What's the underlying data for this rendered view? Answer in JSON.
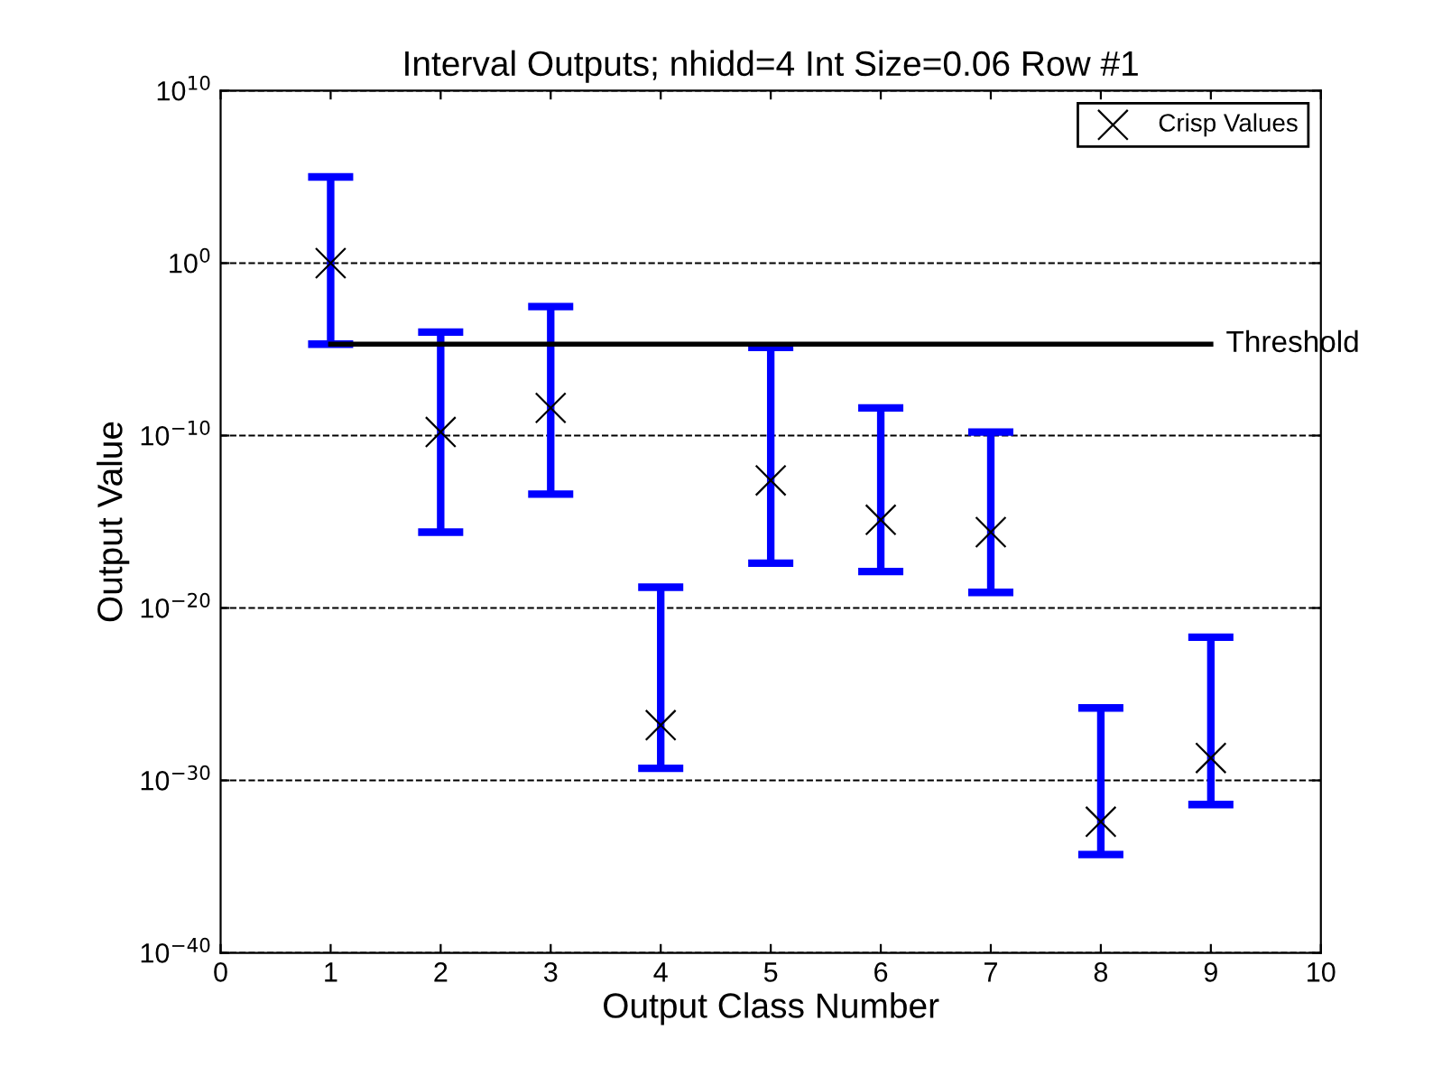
{
  "chart_data": {
    "type": "scatter",
    "title": "Interval Outputs; nhidd=4 Int Size=0.06 Row #1",
    "xlabel": "Output Class Number",
    "ylabel": "Output Value",
    "log": "y",
    "xlim": [
      0,
      10
    ],
    "xticks": [
      0,
      1,
      2,
      3,
      4,
      5,
      6,
      7,
      8,
      9,
      10
    ],
    "ylim": [
      1e-40,
      10000000000.0
    ],
    "yticks": [
      {
        "value": 1e-40,
        "label": "10$^{−40}$"
      },
      {
        "value": 1e-30,
        "label": "10$^{−30}$"
      },
      {
        "value": 1e-20,
        "label": "10$^{−20}$"
      },
      {
        "value": 1e-10,
        "label": "10$^{−10}$"
      },
      {
        "value": 1,
        "label": "10$^{0}$"
      },
      {
        "value": 10000000000.0,
        "label": "10$^{10}$"
      }
    ],
    "grid": "y",
    "legend": "top right",
    "series": [
      {
        "name": "Crisp Values",
        "color": "#000000",
        "marker": "cross",
        "x": [
          1,
          2,
          3,
          4,
          5,
          6,
          7,
          8,
          9
        ],
        "values": [
          1,
          1.6e-10,
          4e-09,
          1.6e-27,
          2.5e-13,
          1.3e-15,
          2.5e-16,
          4e-33,
          2e-29
        ],
        "errors": [
          [
            2e-05,
            100000.0
          ],
          [
            2.5e-16,
            0.0001
          ],
          [
            4e-14,
            0.003
          ],
          [
            5e-30,
            1.6e-19
          ],
          [
            4e-18,
            1.3e-05
          ],
          [
            1.3e-18,
            4e-09
          ],
          [
            8e-20,
            1.6e-10
          ],
          [
            5e-35,
            1.6e-26
          ],
          [
            4e-32,
            2e-22
          ]
        ]
      },
      {
        "name": "Threshold",
        "type": "line",
        "color": "#000000",
        "x": [
          1,
          9
        ],
        "values": [
          2e-05,
          2e-05
        ]
      }
    ]
  }
}
